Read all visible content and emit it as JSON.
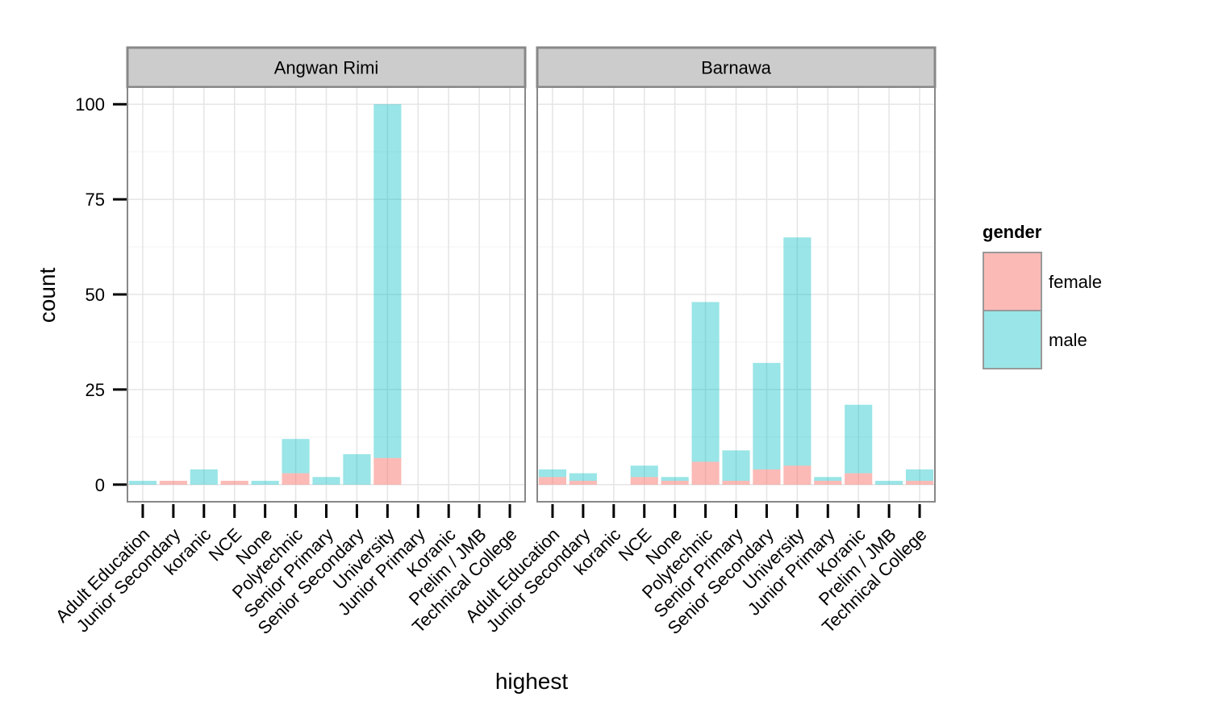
{
  "chart_data": {
    "type": "bar",
    "stacked": true,
    "xlabel": "highest",
    "ylabel": "count",
    "ylim": [
      -4.5,
      104.5
    ],
    "yticks": [
      0,
      25,
      50,
      75,
      100
    ],
    "ytick_labels": [
      "0",
      "25",
      "50",
      "75",
      "100"
    ],
    "categories": [
      "Adult Education",
      "Junior Secondary",
      "koranic",
      "NCE",
      "None",
      "Polytechnic",
      "Senior Primary",
      "Senior Secondary",
      "University",
      "Junior Primary",
      "Koranic",
      "Prelim / JMB",
      "Technical College"
    ],
    "legend": {
      "title": "gender",
      "position": "right",
      "entries": [
        {
          "name": "female",
          "color": "#F8766D"
        },
        {
          "name": "male",
          "color": "#00BFC4"
        }
      ]
    },
    "facets": [
      {
        "name": "Angwan Rimi",
        "series": [
          {
            "name": "female",
            "values": [
              0,
              1,
              0,
              1,
              0,
              3,
              0,
              0,
              7,
              0,
              0,
              0,
              0
            ]
          },
          {
            "name": "male",
            "values": [
              1,
              0,
              4,
              0,
              1,
              9,
              2,
              8,
              93,
              0,
              0,
              0,
              0
            ]
          }
        ]
      },
      {
        "name": "Barnawa",
        "series": [
          {
            "name": "female",
            "values": [
              2,
              1,
              0,
              2,
              1,
              6,
              1,
              4,
              5,
              1,
              3,
              0,
              1
            ]
          },
          {
            "name": "male",
            "values": [
              2,
              2,
              0,
              3,
              1,
              42,
              8,
              28,
              60,
              1,
              18,
              1,
              3
            ]
          }
        ]
      }
    ]
  }
}
